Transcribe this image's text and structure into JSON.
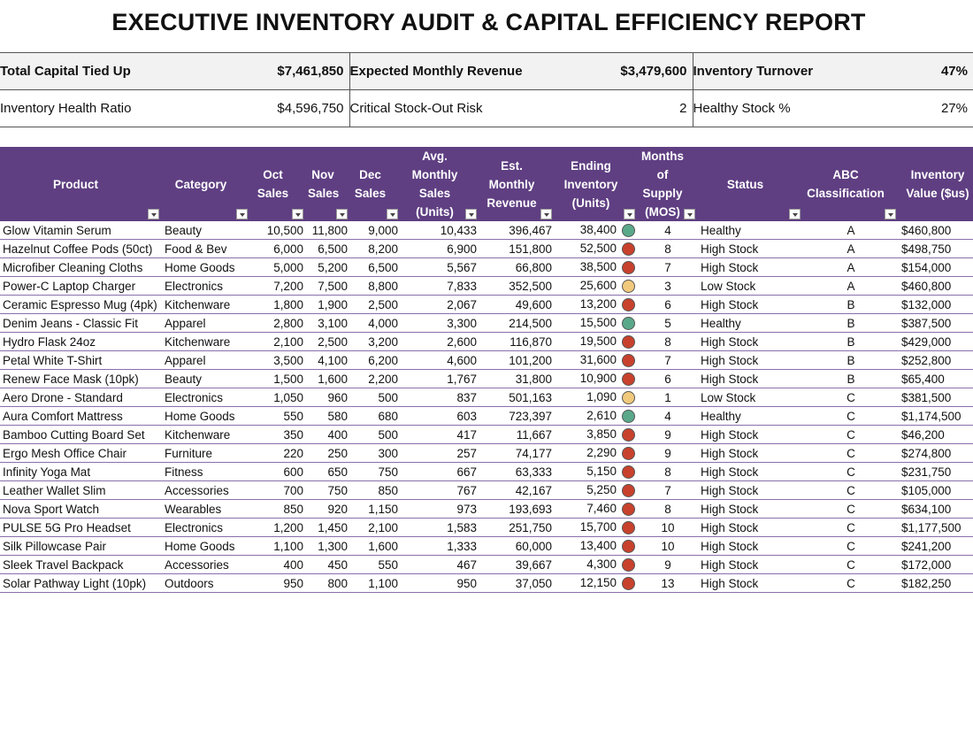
{
  "title": "EXECUTIVE INVENTORY AUDIT & CAPITAL EFFICIENCY REPORT",
  "kpis": [
    [
      {
        "label": "Total Capital Tied Up",
        "value": "$7,461,850"
      },
      {
        "label": "Expected Monthly Revenue",
        "value": "$3,479,600"
      },
      {
        "label": "Inventory Turnover",
        "value": "47%"
      }
    ],
    [
      {
        "label": "Inventory Health Ratio",
        "value": "$4,596,750"
      },
      {
        "label": "Critical Stock-Out Risk",
        "value": "2"
      },
      {
        "label": "Healthy Stock %",
        "value": "27%"
      }
    ]
  ],
  "table": {
    "headers": [
      "Product",
      "Category",
      "Oct Sales",
      "Nov Sales",
      "Dec Sales",
      "Avg. Monthly Sales (Units)",
      "Est. Monthly Revenue",
      "Ending Inventory (Units)",
      "Months of Supply (MOS)",
      "Status",
      "ABC Classification",
      "Inventory Value ($us)"
    ],
    "rows": [
      {
        "cells": [
          "Glow Vitamin Serum",
          "Beauty",
          "10,500",
          "11,800",
          "9,000",
          "10,433",
          "396,467",
          "38,400",
          "4",
          "Healthy",
          "A",
          "$460,800"
        ],
        "indicator": "#5aa88a"
      },
      {
        "cells": [
          "Hazelnut Coffee Pods (50ct)",
          "Food & Bev",
          "6,000",
          "6,500",
          "8,200",
          "6,900",
          "151,800",
          "52,500",
          "8",
          "High Stock",
          "A",
          "$498,750"
        ],
        "indicator": "#c8412d"
      },
      {
        "cells": [
          "Microfiber Cleaning Cloths",
          "Home Goods",
          "5,000",
          "5,200",
          "6,500",
          "5,567",
          "66,800",
          "38,500",
          "7",
          "High Stock",
          "A",
          "$154,000"
        ],
        "indicator": "#c8412d"
      },
      {
        "cells": [
          "Power-C Laptop Charger",
          "Electronics",
          "7,200",
          "7,500",
          "8,800",
          "7,833",
          "352,500",
          "25,600",
          "3",
          "Low Stock",
          "A",
          "$460,800"
        ],
        "indicator": "#f0c97c"
      },
      {
        "cells": [
          "Ceramic Espresso Mug (4pk)",
          "Kitchenware",
          "1,800",
          "1,900",
          "2,500",
          "2,067",
          "49,600",
          "13,200",
          "6",
          "High Stock",
          "B",
          "$132,000"
        ],
        "indicator": "#c8412d"
      },
      {
        "cells": [
          "Denim Jeans - Classic Fit",
          "Apparel",
          "2,800",
          "3,100",
          "4,000",
          "3,300",
          "214,500",
          "15,500",
          "5",
          "Healthy",
          "B",
          "$387,500"
        ],
        "indicator": "#5aa88a"
      },
      {
        "cells": [
          "Hydro Flask 24oz",
          "Kitchenware",
          "2,100",
          "2,500",
          "3,200",
          "2,600",
          "116,870",
          "19,500",
          "8",
          "High Stock",
          "B",
          "$429,000"
        ],
        "indicator": "#c8412d"
      },
      {
        "cells": [
          "Petal White T-Shirt",
          "Apparel",
          "3,500",
          "4,100",
          "6,200",
          "4,600",
          "101,200",
          "31,600",
          "7",
          "High Stock",
          "B",
          "$252,800"
        ],
        "indicator": "#c8412d"
      },
      {
        "cells": [
          "Renew Face Mask (10pk)",
          "Beauty",
          "1,500",
          "1,600",
          "2,200",
          "1,767",
          "31,800",
          "10,900",
          "6",
          "High Stock",
          "B",
          "$65,400"
        ],
        "indicator": "#c8412d"
      },
      {
        "cells": [
          "Aero Drone - Standard",
          "Electronics",
          "1,050",
          "960",
          "500",
          "837",
          "501,163",
          "1,090",
          "1",
          "Low Stock",
          "C",
          "$381,500"
        ],
        "indicator": "#f0c97c"
      },
      {
        "cells": [
          "Aura Comfort Mattress",
          "Home Goods",
          "550",
          "580",
          "680",
          "603",
          "723,397",
          "2,610",
          "4",
          "Healthy",
          "C",
          "$1,174,500"
        ],
        "indicator": "#5aa88a"
      },
      {
        "cells": [
          "Bamboo Cutting Board Set",
          "Kitchenware",
          "350",
          "400",
          "500",
          "417",
          "11,667",
          "3,850",
          "9",
          "High Stock",
          "C",
          "$46,200"
        ],
        "indicator": "#c8412d"
      },
      {
        "cells": [
          "Ergo Mesh Office Chair",
          "Furniture",
          "220",
          "250",
          "300",
          "257",
          "74,177",
          "2,290",
          "9",
          "High Stock",
          "C",
          "$274,800"
        ],
        "indicator": "#c8412d"
      },
      {
        "cells": [
          "Infinity Yoga Mat",
          "Fitness",
          "600",
          "650",
          "750",
          "667",
          "63,333",
          "5,150",
          "8",
          "High Stock",
          "C",
          "$231,750"
        ],
        "indicator": "#c8412d"
      },
      {
        "cells": [
          "Leather Wallet Slim",
          "Accessories",
          "700",
          "750",
          "850",
          "767",
          "42,167",
          "5,250",
          "7",
          "High Stock",
          "C",
          "$105,000"
        ],
        "indicator": "#c8412d"
      },
      {
        "cells": [
          "Nova Sport Watch",
          "Wearables",
          "850",
          "920",
          "1,150",
          "973",
          "193,693",
          "7,460",
          "8",
          "High Stock",
          "C",
          "$634,100"
        ],
        "indicator": "#c8412d"
      },
      {
        "cells": [
          "PULSE 5G Pro Headset",
          "Electronics",
          "1,200",
          "1,450",
          "2,100",
          "1,583",
          "251,750",
          "15,700",
          "10",
          "High Stock",
          "C",
          "$1,177,500"
        ],
        "indicator": "#c8412d"
      },
      {
        "cells": [
          "Silk Pillowcase Pair",
          "Home Goods",
          "1,100",
          "1,300",
          "1,600",
          "1,333",
          "60,000",
          "13,400",
          "10",
          "High Stock",
          "C",
          "$241,200"
        ],
        "indicator": "#c8412d"
      },
      {
        "cells": [
          "Sleek Travel Backpack",
          "Accessories",
          "400",
          "450",
          "550",
          "467",
          "39,667",
          "4,300",
          "9",
          "High Stock",
          "C",
          "$172,000"
        ],
        "indicator": "#c8412d"
      },
      {
        "cells": [
          "Solar Pathway Light (10pk)",
          "Outdoors",
          "950",
          "800",
          "1,100",
          "950",
          "37,050",
          "12,150",
          "13",
          "High Stock",
          "C",
          "$182,250"
        ],
        "indicator": "#c8412d"
      }
    ]
  }
}
